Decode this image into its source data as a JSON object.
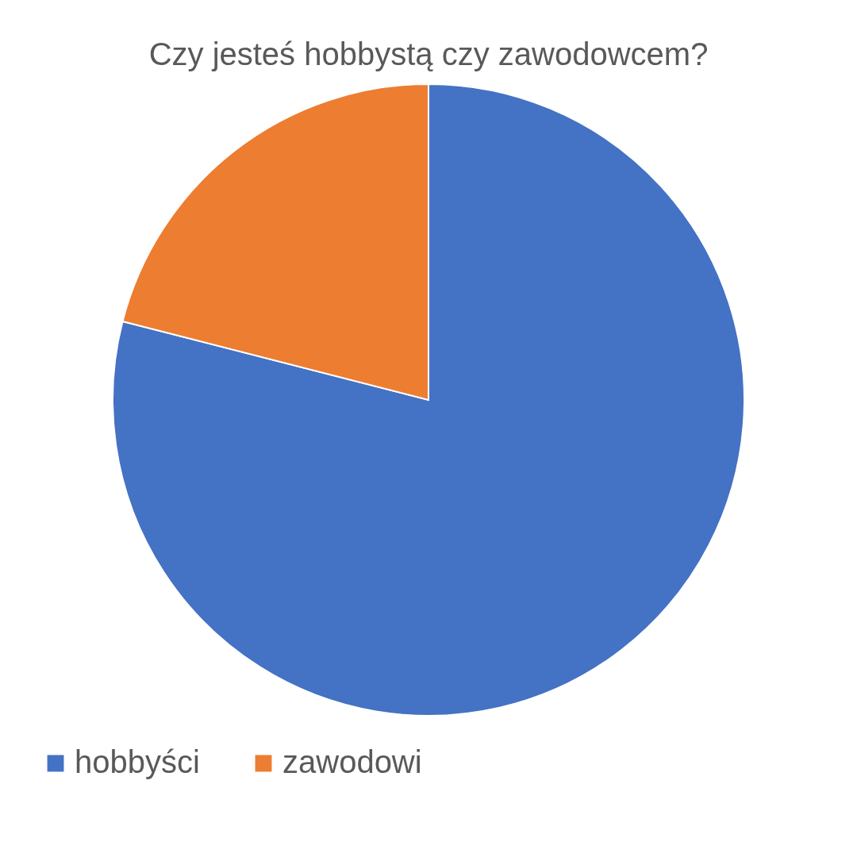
{
  "chart_data": {
    "type": "pie",
    "title": "Czy jesteś hobbystą czy zawodowcem?",
    "categories": [
      "hobbyści",
      "zawodowi"
    ],
    "values": [
      79,
      21
    ],
    "colors": [
      "#4472c4",
      "#ed7d31"
    ],
    "legend": "bottom"
  }
}
